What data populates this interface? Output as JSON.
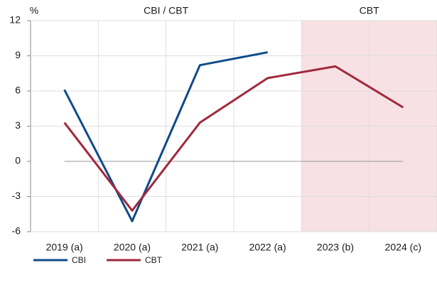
{
  "chart_data": {
    "type": "line",
    "y_label": "%",
    "region_labels": [
      "CBI / CBT",
      "CBT"
    ],
    "shade_color": "#f8e1e4",
    "categories": [
      "2019 (a)",
      "2020 (a)",
      "2021 (a)",
      "2022 (a)",
      "2023 (b)",
      "2024 (c)"
    ],
    "series": [
      {
        "name": "CBI",
        "color": "#0e4a8a",
        "values": [
          6.1,
          -5.1,
          8.2,
          9.3,
          null,
          null
        ]
      },
      {
        "name": "CBT",
        "color": "#a1293d",
        "values": [
          3.3,
          -4.2,
          3.3,
          7.1,
          8.1,
          4.6
        ]
      }
    ],
    "ylim": [
      -6,
      12
    ],
    "yticks": [
      -6,
      -3,
      0,
      3,
      6,
      9,
      12
    ],
    "grid": true
  }
}
